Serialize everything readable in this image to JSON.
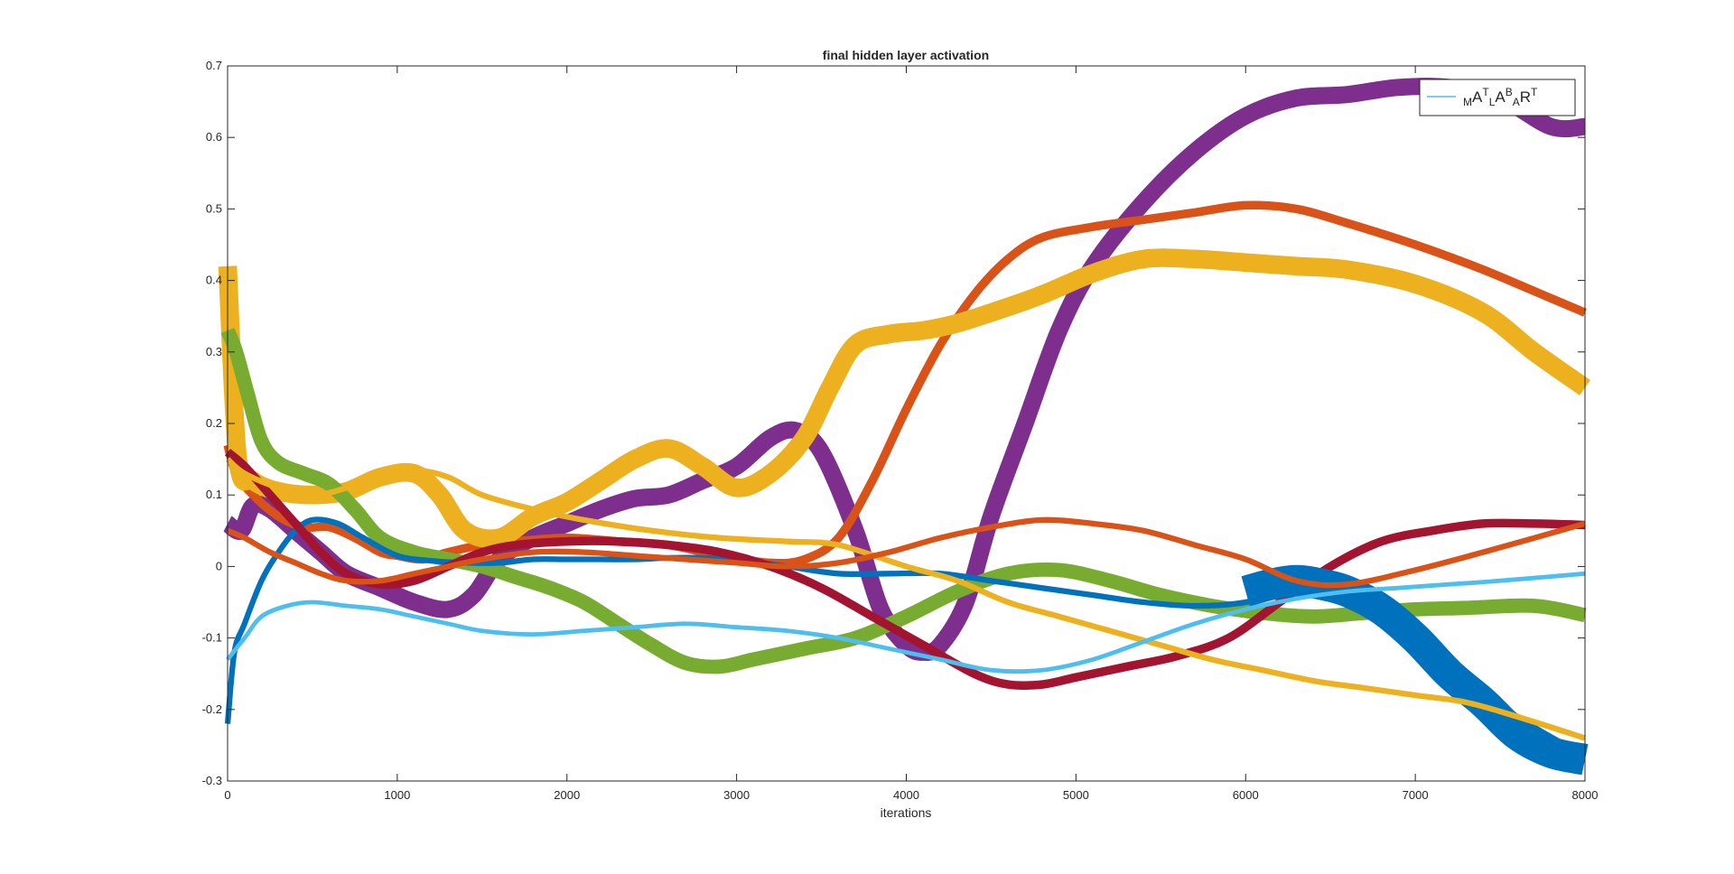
{
  "chart_data": {
    "type": "line",
    "title": "final hidden layer activation",
    "xlabel": "iterations",
    "ylabel": "",
    "xlim": [
      0,
      8000
    ],
    "ylim": [
      -0.3,
      0.7
    ],
    "xticks": [
      0,
      1000,
      2000,
      3000,
      4000,
      5000,
      6000,
      7000,
      8000
    ],
    "yticks": [
      -0.3,
      -0.2,
      -0.1,
      0,
      0.1,
      0.2,
      0.3,
      0.4,
      0.5,
      0.6,
      0.7
    ],
    "grid": false,
    "legend": {
      "position": "top-right",
      "entries": [
        {
          "parts": [
            "M",
            "A",
            "T",
            "L",
            "A",
            "B",
            "A",
            "R",
            "T"
          ],
          "color": "#4DBEEE"
        }
      ]
    },
    "series": [
      {
        "color": "#7E2F8E",
        "band": 0.012,
        "x": [
          0,
          80,
          150,
          250,
          400,
          550,
          700,
          900,
          1100,
          1300,
          1450,
          1600,
          1800,
          2000,
          2200,
          2400,
          2600,
          2800,
          3000,
          3200,
          3350,
          3500,
          3700,
          3850,
          4000,
          4100,
          4200,
          4350,
          4500,
          4700,
          4900,
          5100,
          5400,
          5700,
          6000,
          6300,
          6600,
          6900,
          7200,
          7500,
          7800,
          8000
        ],
        "y": [
          0.06,
          0.05,
          0.085,
          0.08,
          0.05,
          0.02,
          -0.01,
          -0.03,
          -0.05,
          -0.06,
          -0.04,
          0.01,
          0.04,
          0.06,
          0.08,
          0.095,
          0.1,
          0.12,
          0.14,
          0.18,
          0.19,
          0.16,
          0.05,
          -0.06,
          -0.11,
          -0.12,
          -0.11,
          -0.05,
          0.07,
          0.2,
          0.33,
          0.42,
          0.51,
          0.58,
          0.63,
          0.655,
          0.66,
          0.67,
          0.67,
          0.655,
          0.615,
          0.615
        ]
      },
      {
        "color": "#D95319",
        "band": 0.006,
        "x": [
          0,
          50,
          150,
          300,
          450,
          600,
          750,
          900,
          1000,
          1150,
          1300,
          1500,
          1700,
          2000,
          2300,
          2600,
          2900,
          3200,
          3400,
          3600,
          3800,
          4000,
          4200,
          4400,
          4600,
          4800,
          5100,
          5400,
          5700,
          6000,
          6300,
          6600,
          7000,
          7400,
          7800,
          8000
        ],
        "y": [
          0.17,
          0.13,
          0.1,
          0.07,
          0.055,
          0.055,
          0.04,
          0.02,
          0.015,
          0.01,
          0.02,
          0.03,
          0.035,
          0.04,
          0.035,
          0.03,
          0.015,
          0.005,
          0.01,
          0.04,
          0.12,
          0.22,
          0.31,
          0.38,
          0.43,
          0.46,
          0.475,
          0.485,
          0.495,
          0.505,
          0.5,
          0.48,
          0.45,
          0.415,
          0.375,
          0.355
        ]
      },
      {
        "color": "#EDB120",
        "band": 0.013,
        "x": [
          0,
          60,
          150,
          300,
          500,
          700,
          900,
          1100,
          1250,
          1400,
          1600,
          1800,
          2000,
          2200,
          2400,
          2600,
          2800,
          3000,
          3200,
          3400,
          3550,
          3700,
          3900,
          4100,
          4300,
          4500,
          4800,
          5100,
          5400,
          5700,
          6000,
          6300,
          6600,
          7000,
          7400,
          7700,
          8000
        ],
        "y": [
          0.42,
          0.15,
          0.12,
          0.105,
          0.1,
          0.105,
          0.125,
          0.13,
          0.1,
          0.05,
          0.04,
          0.07,
          0.09,
          0.12,
          0.15,
          0.165,
          0.14,
          0.11,
          0.13,
          0.18,
          0.25,
          0.31,
          0.325,
          0.33,
          0.34,
          0.355,
          0.38,
          0.41,
          0.43,
          0.43,
          0.425,
          0.42,
          0.415,
          0.395,
          0.355,
          0.3,
          0.25
        ]
      },
      {
        "color": "#77AC30",
        "band": 0.01,
        "x": [
          0,
          50,
          120,
          200,
          300,
          450,
          600,
          750,
          900,
          1100,
          1300,
          1500,
          1700,
          1900,
          2100,
          2300,
          2500,
          2700,
          2900,
          3100,
          3400,
          3700,
          4000,
          4300,
          4600,
          4900,
          5200,
          5500,
          5800,
          6100,
          6400,
          6700,
          7000,
          7300,
          7700,
          8000
        ],
        "y": [
          0.33,
          0.3,
          0.24,
          0.175,
          0.145,
          0.13,
          0.115,
          0.08,
          0.04,
          0.02,
          0.01,
          0.0,
          -0.015,
          -0.03,
          -0.05,
          -0.08,
          -0.11,
          -0.135,
          -0.14,
          -0.13,
          -0.115,
          -0.1,
          -0.07,
          -0.035,
          -0.01,
          -0.005,
          -0.02,
          -0.04,
          -0.055,
          -0.065,
          -0.07,
          -0.065,
          -0.06,
          -0.058,
          -0.055,
          -0.068
        ]
      },
      {
        "color": "#0072BD",
        "band": 0.004,
        "x": [
          0,
          40,
          100,
          200,
          300,
          400,
          500,
          650,
          800,
          1000,
          1200,
          1400,
          1600,
          1800,
          2000,
          2200,
          2400,
          2600,
          2800,
          3000,
          3300,
          3600,
          3900,
          4200,
          4500,
          4800,
          5100,
          5400,
          5700,
          6000,
          6300,
          6600,
          6900,
          7200,
          7600,
          8000
        ],
        "y": [
          -0.22,
          -0.12,
          -0.08,
          -0.02,
          0.02,
          0.05,
          0.065,
          0.06,
          0.04,
          0.015,
          0.008,
          0.005,
          0.005,
          0.01,
          0.01,
          0.01,
          0.01,
          0.012,
          0.012,
          0.01,
          0.0,
          -0.01,
          -0.01,
          -0.01,
          -0.02,
          -0.03,
          -0.04,
          -0.05,
          -0.055,
          -0.05,
          -0.03,
          -0.05,
          -0.09,
          -0.14,
          -0.21,
          -0.265
        ]
      },
      {
        "color": "#A2142F",
        "band": 0.006,
        "x": [
          0,
          100,
          250,
          400,
          550,
          700,
          900,
          1100,
          1300,
          1500,
          1700,
          2000,
          2300,
          2600,
          2900,
          3200,
          3500,
          3800,
          4100,
          4400,
          4600,
          4800,
          5000,
          5300,
          5600,
          5900,
          6200,
          6500,
          6800,
          7100,
          7400,
          7700,
          8000
        ],
        "y": [
          0.16,
          0.14,
          0.1,
          0.06,
          0.02,
          -0.01,
          -0.025,
          -0.02,
          0.0,
          0.02,
          0.03,
          0.035,
          0.035,
          0.03,
          0.02,
          0.0,
          -0.03,
          -0.07,
          -0.11,
          -0.15,
          -0.165,
          -0.165,
          -0.155,
          -0.14,
          -0.125,
          -0.1,
          -0.05,
          0.0,
          0.035,
          0.05,
          0.06,
          0.06,
          0.058
        ]
      },
      {
        "color": "#0072BD",
        "band": 0.022,
        "x": [
          6000,
          6150,
          6300,
          6450,
          6600,
          6800,
          7000,
          7200,
          7400,
          7600,
          7800,
          8000
        ],
        "y": [
          -0.035,
          -0.025,
          -0.02,
          -0.025,
          -0.035,
          -0.06,
          -0.1,
          -0.15,
          -0.19,
          -0.235,
          -0.26,
          -0.27
        ]
      },
      {
        "color": "#EDB120",
        "band": 0.004,
        "x": [
          0,
          100,
          300,
          500,
          700,
          900,
          1100,
          1300,
          1500,
          1800,
          2100,
          2500,
          2900,
          3300,
          3600,
          4000,
          4300,
          4600,
          4900,
          5200,
          5500,
          5800,
          6100,
          6400,
          6700,
          7000,
          7300,
          7600,
          8000
        ],
        "y": [
          0.15,
          0.13,
          0.11,
          0.1,
          0.11,
          0.13,
          0.135,
          0.125,
          0.1,
          0.08,
          0.065,
          0.05,
          0.04,
          0.035,
          0.03,
          0.0,
          -0.02,
          -0.05,
          -0.07,
          -0.09,
          -0.11,
          -0.13,
          -0.145,
          -0.16,
          -0.17,
          -0.18,
          -0.19,
          -0.21,
          -0.24
        ]
      },
      {
        "color": "#D95319",
        "band": 0.004,
        "x": [
          0,
          100,
          250,
          400,
          550,
          700,
          900,
          1100,
          1300,
          1500,
          1800,
          2100,
          2400,
          2700,
          3000,
          3300,
          3600,
          3900,
          4200,
          4500,
          4800,
          5100,
          5400,
          5700,
          6000,
          6300,
          6600,
          7000,
          7400,
          8000
        ],
        "y": [
          0.05,
          0.04,
          0.02,
          0.005,
          -0.01,
          -0.02,
          -0.02,
          -0.01,
          0.0,
          0.01,
          0.02,
          0.02,
          0.015,
          0.01,
          0.005,
          0.0,
          0.005,
          0.02,
          0.04,
          0.055,
          0.065,
          0.06,
          0.05,
          0.03,
          0.01,
          -0.02,
          -0.025,
          -0.005,
          0.02,
          0.06
        ]
      },
      {
        "color": "#4DBEEE",
        "band": 0.003,
        "x": [
          0,
          100,
          200,
          350,
          500,
          700,
          900,
          1100,
          1300,
          1500,
          1800,
          2100,
          2400,
          2700,
          3000,
          3300,
          3600,
          3900,
          4200,
          4500,
          4800,
          5100,
          5400,
          5700,
          6000,
          6300,
          6600,
          6900,
          7200,
          7500,
          8000
        ],
        "y": [
          -0.13,
          -0.1,
          -0.07,
          -0.055,
          -0.05,
          -0.055,
          -0.06,
          -0.07,
          -0.08,
          -0.09,
          -0.095,
          -0.09,
          -0.085,
          -0.08,
          -0.085,
          -0.09,
          -0.1,
          -0.115,
          -0.13,
          -0.145,
          -0.145,
          -0.13,
          -0.105,
          -0.08,
          -0.06,
          -0.045,
          -0.035,
          -0.03,
          -0.025,
          -0.02,
          -0.01
        ]
      }
    ]
  }
}
